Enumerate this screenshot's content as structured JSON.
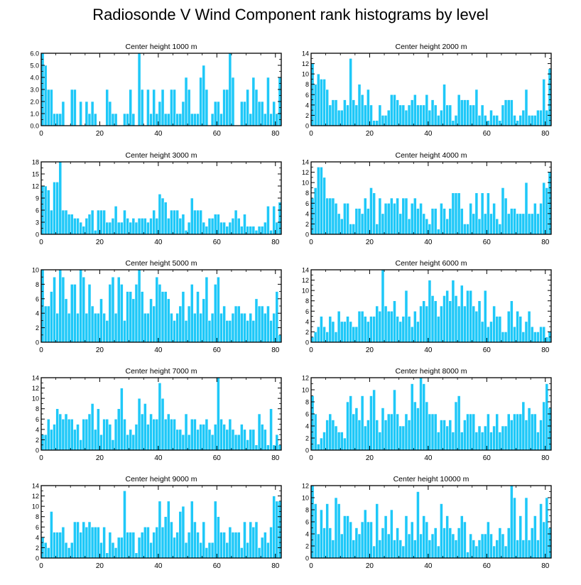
{
  "title": "Radiosonde V Wind Component rank histograms by level",
  "colors": {
    "bar": "#1ec8f8",
    "bar_edge": "#ffffff",
    "axis": "#000000"
  },
  "chart_data": [
    {
      "type": "bar",
      "title": "Center height 1000 m",
      "xlim": [
        0,
        82
      ],
      "ylim": [
        0,
        6
      ],
      "xticks": [
        0,
        20,
        40,
        60,
        80
      ],
      "yticks": [
        0,
        1,
        2,
        3,
        4,
        5,
        6
      ],
      "ytick_labels": [
        "0.0",
        "1.0",
        "2.0",
        "3.0",
        "4.0",
        "5.0",
        "6.0"
      ],
      "values": [
        6,
        5,
        3,
        3,
        1,
        1,
        1,
        2,
        0,
        0,
        3,
        3,
        0,
        2,
        0,
        2,
        1,
        2,
        1,
        0,
        0,
        0,
        3,
        2,
        1,
        1,
        0,
        0,
        1,
        1,
        3,
        1,
        0,
        6,
        3,
        0,
        3,
        1,
        3,
        1,
        2,
        3,
        1,
        1,
        3,
        3,
        1,
        1,
        2,
        4,
        3,
        1,
        1,
        1,
        4,
        5,
        3,
        0,
        1,
        2,
        2,
        1,
        3,
        3,
        6,
        4,
        0,
        0,
        2,
        2,
        3,
        1,
        4,
        3,
        2,
        2,
        1,
        4,
        1,
        2,
        1,
        4
      ]
    },
    {
      "type": "bar",
      "title": "Center height 2000 m",
      "xlim": [
        0,
        82
      ],
      "ylim": [
        0,
        14
      ],
      "xticks": [
        0,
        20,
        40,
        60,
        80
      ],
      "yticks": [
        0,
        2,
        4,
        6,
        8,
        10,
        12,
        14
      ],
      "values": [
        12,
        8,
        10,
        9,
        9,
        7,
        4,
        5,
        5,
        3,
        3,
        5,
        4,
        13,
        5,
        4,
        8,
        6,
        4,
        7,
        4,
        1,
        1,
        4,
        2,
        2,
        3,
        6,
        6,
        5,
        4,
        4,
        3,
        4,
        5,
        6,
        4,
        4,
        4,
        6,
        3,
        5,
        4,
        2,
        3,
        8,
        4,
        4,
        1,
        2,
        6,
        5,
        5,
        5,
        4,
        4,
        7,
        2,
        4,
        2,
        1,
        3,
        2,
        2,
        1,
        4,
        5,
        5,
        5,
        2,
        1,
        2,
        3,
        7,
        2,
        2,
        2,
        3,
        3,
        9,
        3,
        11
      ]
    },
    {
      "type": "bar",
      "title": "Center height 3000 m",
      "xlim": [
        0,
        82
      ],
      "ylim": [
        0,
        18
      ],
      "xticks": [
        0,
        20,
        40,
        60,
        80
      ],
      "yticks": [
        0,
        3,
        6,
        9,
        12,
        15,
        18
      ],
      "values": [
        12,
        12,
        11,
        6,
        13,
        13,
        18,
        6,
        6,
        5,
        5,
        4,
        4,
        3,
        2,
        4,
        5,
        6,
        1,
        6,
        6,
        6,
        3,
        3,
        4,
        7,
        3,
        3,
        6,
        4,
        3,
        4,
        3,
        4,
        4,
        4,
        3,
        4,
        6,
        4,
        10,
        9,
        8,
        4,
        6,
        6,
        6,
        4,
        5,
        1,
        3,
        9,
        6,
        6,
        6,
        3,
        2,
        4,
        4,
        5,
        5,
        3,
        3,
        2,
        3,
        4,
        6,
        4,
        2,
        5,
        2,
        2,
        2,
        1,
        2,
        2,
        3,
        7,
        1,
        7,
        3,
        8
      ]
    },
    {
      "type": "bar",
      "title": "Center height 4000 m",
      "xlim": [
        0,
        82
      ],
      "ylim": [
        0,
        14
      ],
      "xticks": [
        0,
        20,
        40,
        60,
        80
      ],
      "yticks": [
        0,
        2,
        4,
        6,
        8,
        10,
        12,
        14
      ],
      "values": [
        7,
        9,
        13,
        13,
        11,
        7,
        7,
        7,
        6,
        4,
        3,
        6,
        6,
        2,
        2,
        5,
        5,
        4,
        7,
        5,
        9,
        8,
        2,
        7,
        4,
        6,
        6,
        7,
        6,
        7,
        4,
        7,
        7,
        3,
        6,
        7,
        5,
        6,
        4,
        3,
        2,
        5,
        5,
        1,
        6,
        5,
        3,
        5,
        8,
        8,
        8,
        5,
        2,
        2,
        6,
        4,
        8,
        3,
        8,
        4,
        8,
        4,
        6,
        3,
        2,
        9,
        7,
        4,
        5,
        5,
        4,
        4,
        4,
        10,
        4,
        4,
        6,
        4,
        6,
        10,
        9,
        12
      ]
    },
    {
      "type": "bar",
      "title": "Center height 5000 m",
      "xlim": [
        0,
        82
      ],
      "ylim": [
        0,
        10
      ],
      "xticks": [
        0,
        20,
        40,
        60,
        80
      ],
      "yticks": [
        0,
        2,
        4,
        6,
        8,
        10
      ],
      "values": [
        10,
        5,
        5,
        7,
        9,
        4,
        10,
        9,
        6,
        4,
        8,
        8,
        4,
        10,
        9,
        4,
        8,
        5,
        4,
        4,
        6,
        4,
        3,
        8,
        9,
        4,
        9,
        8,
        3,
        7,
        7,
        6,
        8,
        10,
        7,
        4,
        4,
        6,
        5,
        9,
        8,
        7,
        7,
        6,
        4,
        3,
        4,
        5,
        7,
        3,
        5,
        8,
        4,
        7,
        4,
        6,
        9,
        3,
        4,
        8,
        9,
        4,
        5,
        3,
        3,
        4,
        5,
        5,
        4,
        4,
        3,
        4,
        3,
        6,
        5,
        5,
        4,
        5,
        3,
        4,
        7,
        1
      ]
    },
    {
      "type": "bar",
      "title": "Center height 6000 m",
      "xlim": [
        0,
        82
      ],
      "ylim": [
        0,
        14
      ],
      "xticks": [
        0,
        20,
        40,
        60,
        80
      ],
      "yticks": [
        0,
        2,
        4,
        6,
        8,
        10,
        12,
        14
      ],
      "values": [
        1,
        2,
        3,
        5,
        3,
        2,
        5,
        4,
        2,
        6,
        4,
        4,
        5,
        4,
        3,
        3,
        6,
        6,
        5,
        4,
        5,
        5,
        7,
        6,
        14,
        7,
        6,
        6,
        8,
        5,
        4,
        5,
        10,
        5,
        3,
        6,
        4,
        7,
        8,
        7,
        12,
        9,
        8,
        5,
        7,
        9,
        10,
        8,
        12,
        9,
        7,
        11,
        7,
        10,
        10,
        7,
        6,
        8,
        4,
        10,
        3,
        4,
        7,
        5,
        5,
        2,
        2,
        6,
        8,
        3,
        6,
        5,
        2,
        4,
        6,
        3,
        2,
        2,
        3,
        3,
        1,
        2
      ]
    },
    {
      "type": "bar",
      "title": "Center height 7000 m",
      "xlim": [
        0,
        82
      ],
      "ylim": [
        0,
        14
      ],
      "xticks": [
        0,
        20,
        40,
        60,
        80
      ],
      "yticks": [
        0,
        2,
        4,
        6,
        8,
        10,
        12,
        14
      ],
      "values": [
        3,
        3,
        6,
        4,
        5,
        8,
        7,
        6,
        7,
        6,
        6,
        4,
        5,
        2,
        6,
        6,
        7,
        9,
        4,
        8,
        3,
        6,
        6,
        5,
        2,
        6,
        8,
        12,
        6,
        3,
        4,
        3,
        5,
        10,
        7,
        9,
        5,
        7,
        6,
        6,
        13,
        10,
        6,
        7,
        6,
        6,
        4,
        4,
        3,
        7,
        3,
        6,
        6,
        4,
        5,
        5,
        6,
        4,
        3,
        5,
        14,
        6,
        5,
        4,
        6,
        4,
        3,
        3,
        5,
        4,
        2,
        4,
        4,
        1,
        7,
        5,
        4,
        1,
        8,
        1,
        3,
        1
      ]
    },
    {
      "type": "bar",
      "title": "Center height 8000 m",
      "xlim": [
        0,
        82
      ],
      "ylim": [
        0,
        12
      ],
      "xticks": [
        0,
        20,
        40,
        60,
        80
      ],
      "yticks": [
        0,
        2,
        4,
        6,
        8,
        10,
        12
      ],
      "values": [
        9,
        6,
        1,
        2,
        3,
        5,
        6,
        5,
        4,
        3,
        3,
        2,
        8,
        9,
        6,
        7,
        5,
        9,
        4,
        5,
        9,
        10,
        5,
        3,
        7,
        5,
        6,
        6,
        10,
        6,
        4,
        4,
        6,
        5,
        11,
        8,
        7,
        12,
        11,
        8,
        6,
        6,
        6,
        3,
        5,
        5,
        4,
        5,
        3,
        8,
        9,
        3,
        5,
        6,
        6,
        6,
        3,
        4,
        3,
        4,
        6,
        3,
        4,
        6,
        3,
        4,
        4,
        6,
        5,
        6,
        6,
        6,
        8,
        5,
        7,
        6,
        6,
        3,
        5,
        8,
        11,
        7
      ]
    },
    {
      "type": "bar",
      "title": "Center height 9000 m",
      "xlim": [
        0,
        82
      ],
      "ylim": [
        0,
        14
      ],
      "xticks": [
        0,
        20,
        40,
        60,
        80
      ],
      "yticks": [
        0,
        2,
        4,
        6,
        8,
        10,
        12,
        14
      ],
      "values": [
        4,
        3,
        2,
        9,
        5,
        5,
        5,
        6,
        3,
        2,
        3,
        7,
        7,
        5,
        7,
        6,
        7,
        6,
        6,
        6,
        3,
        6,
        1,
        5,
        3,
        2,
        4,
        4,
        13,
        5,
        5,
        5,
        1,
        4,
        5,
        6,
        6,
        3,
        5,
        6,
        11,
        6,
        8,
        11,
        7,
        4,
        5,
        9,
        10,
        3,
        5,
        11,
        7,
        5,
        3,
        7,
        2,
        3,
        3,
        11,
        8,
        5,
        5,
        3,
        6,
        5,
        5,
        5,
        2,
        7,
        3,
        7,
        6,
        7,
        2,
        4,
        5,
        3,
        6,
        12,
        11,
        11
      ]
    },
    {
      "type": "bar",
      "title": "Center height 10000 m",
      "xlim": [
        0,
        82
      ],
      "ylim": [
        0,
        12
      ],
      "xticks": [
        0,
        20,
        40,
        60,
        80
      ],
      "yticks": [
        0,
        2,
        4,
        6,
        8,
        10,
        12
      ],
      "values": [
        12,
        9,
        4,
        8,
        5,
        9,
        5,
        3,
        10,
        9,
        4,
        7,
        7,
        6,
        3,
        5,
        4,
        6,
        8,
        6,
        6,
        2,
        9,
        3,
        5,
        7,
        4,
        8,
        3,
        5,
        3,
        2,
        7,
        4,
        6,
        3,
        11,
        4,
        7,
        6,
        3,
        4,
        5,
        2,
        9,
        5,
        7,
        5,
        4,
        3,
        5,
        7,
        6,
        1,
        4,
        3,
        2,
        3,
        4,
        4,
        6,
        4,
        2,
        3,
        5,
        4,
        2,
        5,
        12,
        10,
        3,
        7,
        3,
        10,
        3,
        5,
        7,
        3,
        9,
        6,
        10,
        5
      ]
    }
  ]
}
